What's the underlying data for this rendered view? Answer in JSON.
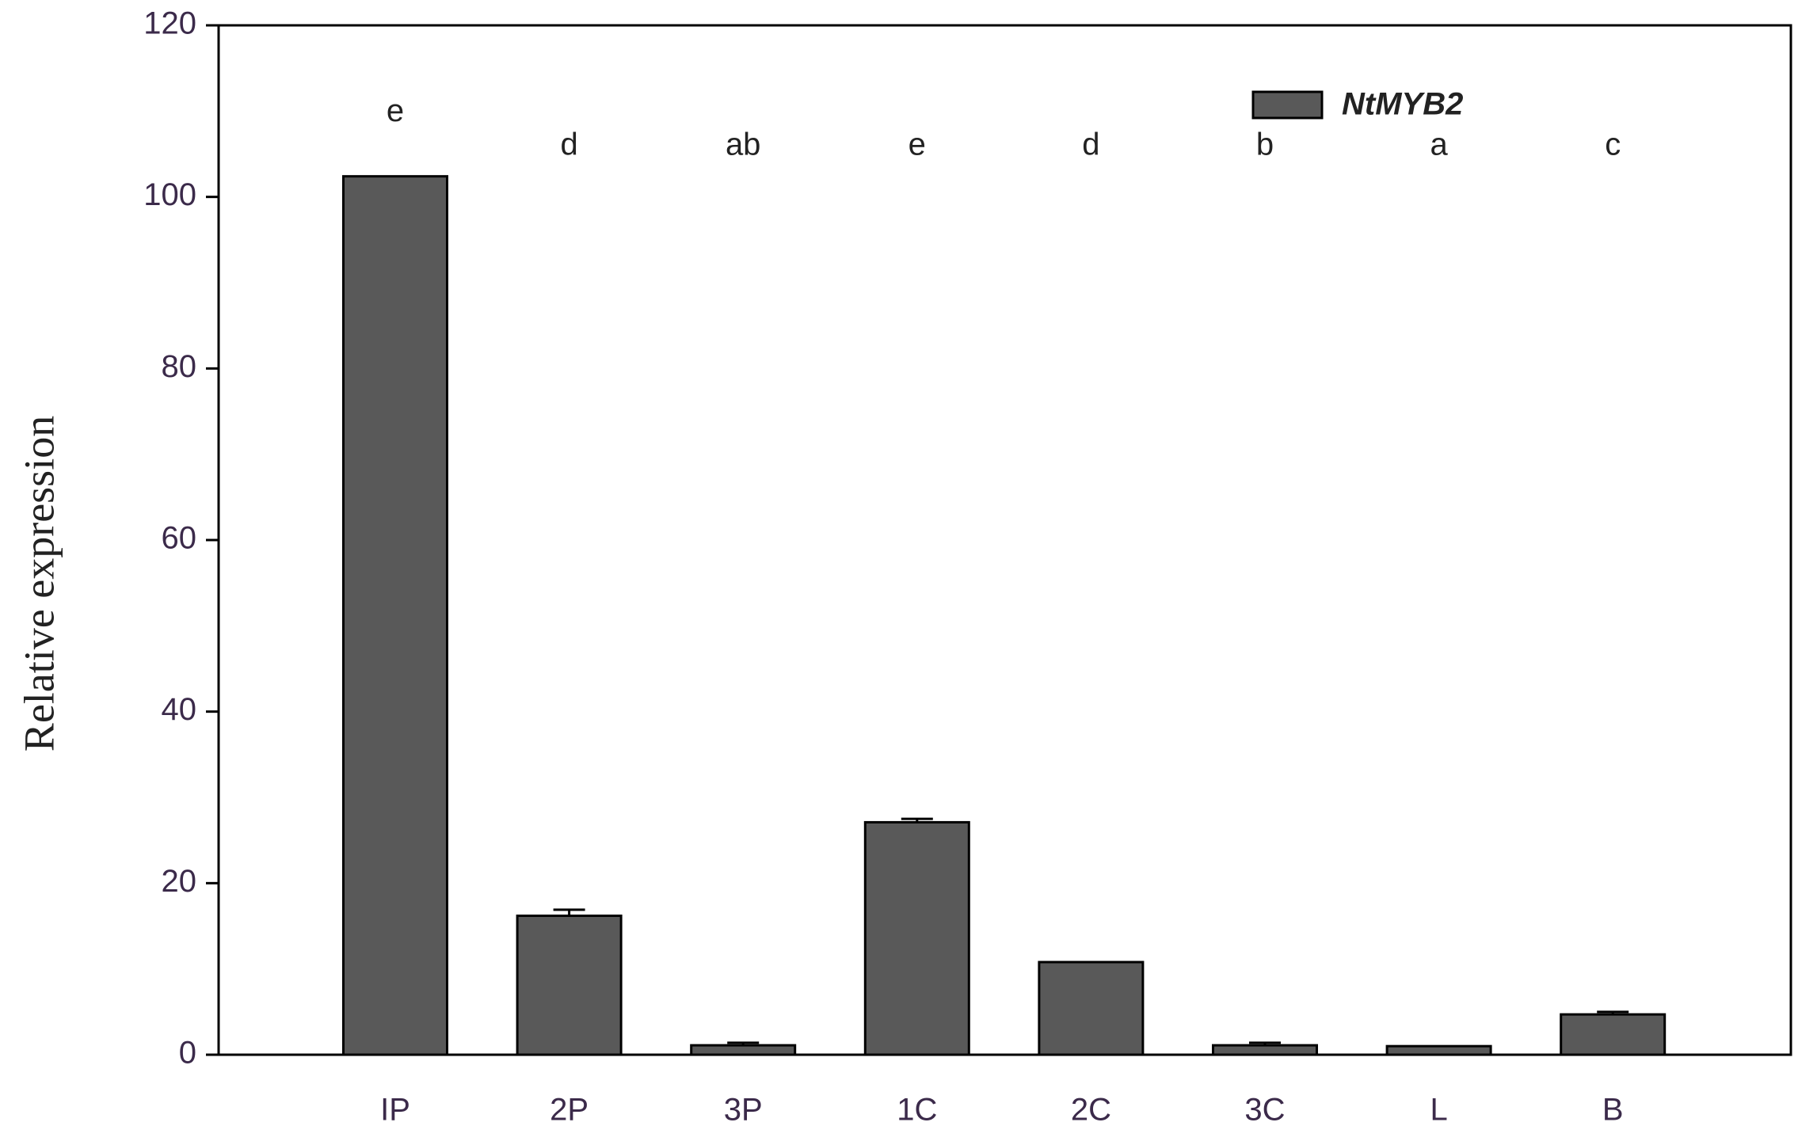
{
  "chart_data": {
    "type": "bar",
    "y_label": "Relative expression",
    "categories": [
      "IP",
      "2P",
      "3P",
      "1C",
      "2C",
      "3C",
      "L",
      "B"
    ],
    "series": [
      {
        "name": "NtMYB2",
        "color": "#595959",
        "values": [
          102.4,
          16.2,
          1.1,
          27.1,
          10.8,
          1.1,
          1.0,
          4.7
        ],
        "errors": [
          0,
          0.7,
          0.3,
          0.4,
          0,
          0.3,
          0,
          0.3
        ]
      }
    ],
    "annotations": [
      "e",
      "d",
      "ab",
      "e",
      "d",
      "b",
      "a",
      "c"
    ],
    "ylim": [
      0,
      120
    ],
    "yticks": [
      0,
      20,
      40,
      60,
      80,
      100,
      120
    ],
    "grid": false,
    "legend": "top-right"
  }
}
